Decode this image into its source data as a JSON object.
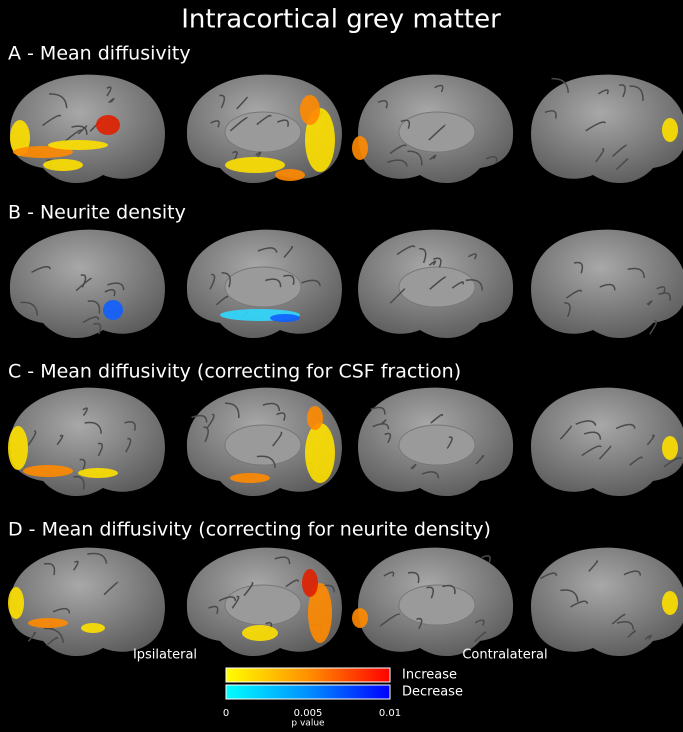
{
  "title": "Intracortical grey matter",
  "rows": [
    {
      "label": "A - Mean diffusivity"
    },
    {
      "label": "B - Neurite density"
    },
    {
      "label": "C - Mean diffusivity (correcting for CSF fraction)"
    },
    {
      "label": "D - Mean diffusivity (correcting for neurite density)"
    }
  ],
  "sides": {
    "left": "Ipsilateral",
    "right": "Contralateral"
  },
  "colorbar": {
    "increase": "Increase",
    "decrease": "Decrease",
    "ticks": [
      "0",
      "0.005",
      "0.01"
    ],
    "label": "p value"
  }
}
